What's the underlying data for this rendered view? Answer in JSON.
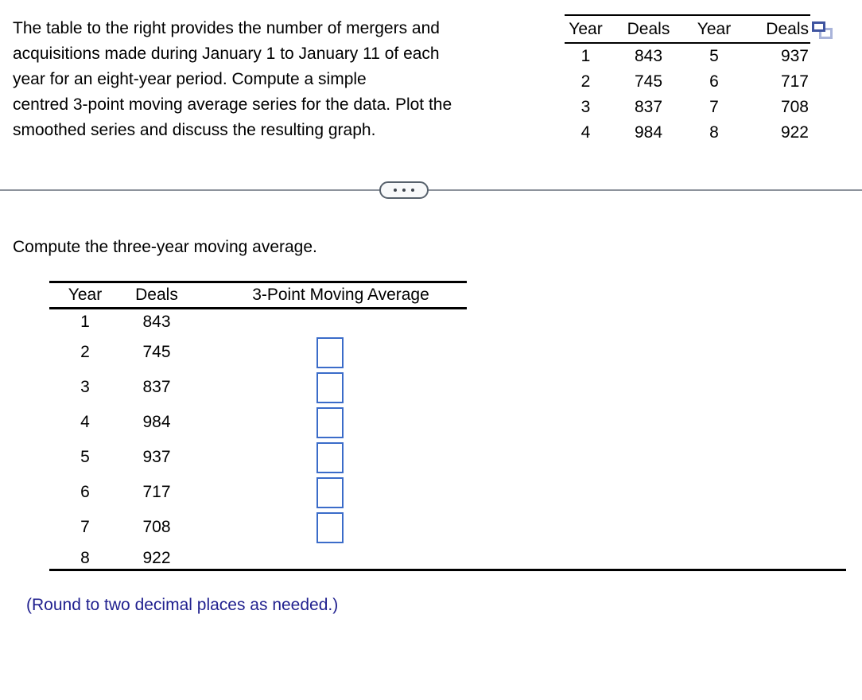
{
  "problem": {
    "lines": [
      "The table to the right provides the number of mergers and",
      "acquisitions made during January 1 to January 11 of each",
      "year for an eight-year period. Compute a simple",
      "centred 3-point moving average series for the data. Plot the",
      "smoothed series and discuss the resulting graph."
    ]
  },
  "data_table": {
    "headers": [
      "Year",
      "Deals",
      "Year",
      "Deals"
    ],
    "rows": [
      [
        "1",
        "843",
        "5",
        "937"
      ],
      [
        "2",
        "745",
        "6",
        "717"
      ],
      [
        "3",
        "837",
        "7",
        "708"
      ],
      [
        "4",
        "984",
        "8",
        "922"
      ]
    ]
  },
  "icons": {
    "popout": "popout-icon",
    "ellipsis": "ellipsis-icon"
  },
  "question": {
    "prompt": "Compute the three-year moving average."
  },
  "answer_table": {
    "headers": [
      "Year",
      "Deals",
      "3-Point Moving Average"
    ],
    "rows": [
      {
        "year": "1",
        "deals": "843",
        "has_input": false,
        "input": ""
      },
      {
        "year": "2",
        "deals": "745",
        "has_input": true,
        "input": ""
      },
      {
        "year": "3",
        "deals": "837",
        "has_input": true,
        "input": ""
      },
      {
        "year": "4",
        "deals": "984",
        "has_input": true,
        "input": ""
      },
      {
        "year": "5",
        "deals": "937",
        "has_input": true,
        "input": ""
      },
      {
        "year": "6",
        "deals": "717",
        "has_input": true,
        "input": ""
      },
      {
        "year": "7",
        "deals": "708",
        "has_input": true,
        "input": ""
      },
      {
        "year": "8",
        "deals": "922",
        "has_input": false,
        "input": ""
      }
    ]
  },
  "footnote": "(Round to two decimal places as needed.)",
  "colors": {
    "accent_blue": "#3B6CC9",
    "navy_text": "#21218F",
    "divider_gray": "#8D939C",
    "pill_border": "#57616C",
    "pill_bg": "#F8F9FA",
    "dot_color": "#3E454D",
    "icon_dark": "#3F54A0",
    "icon_light": "#A9B4DA",
    "rule_black": "#000000"
  }
}
